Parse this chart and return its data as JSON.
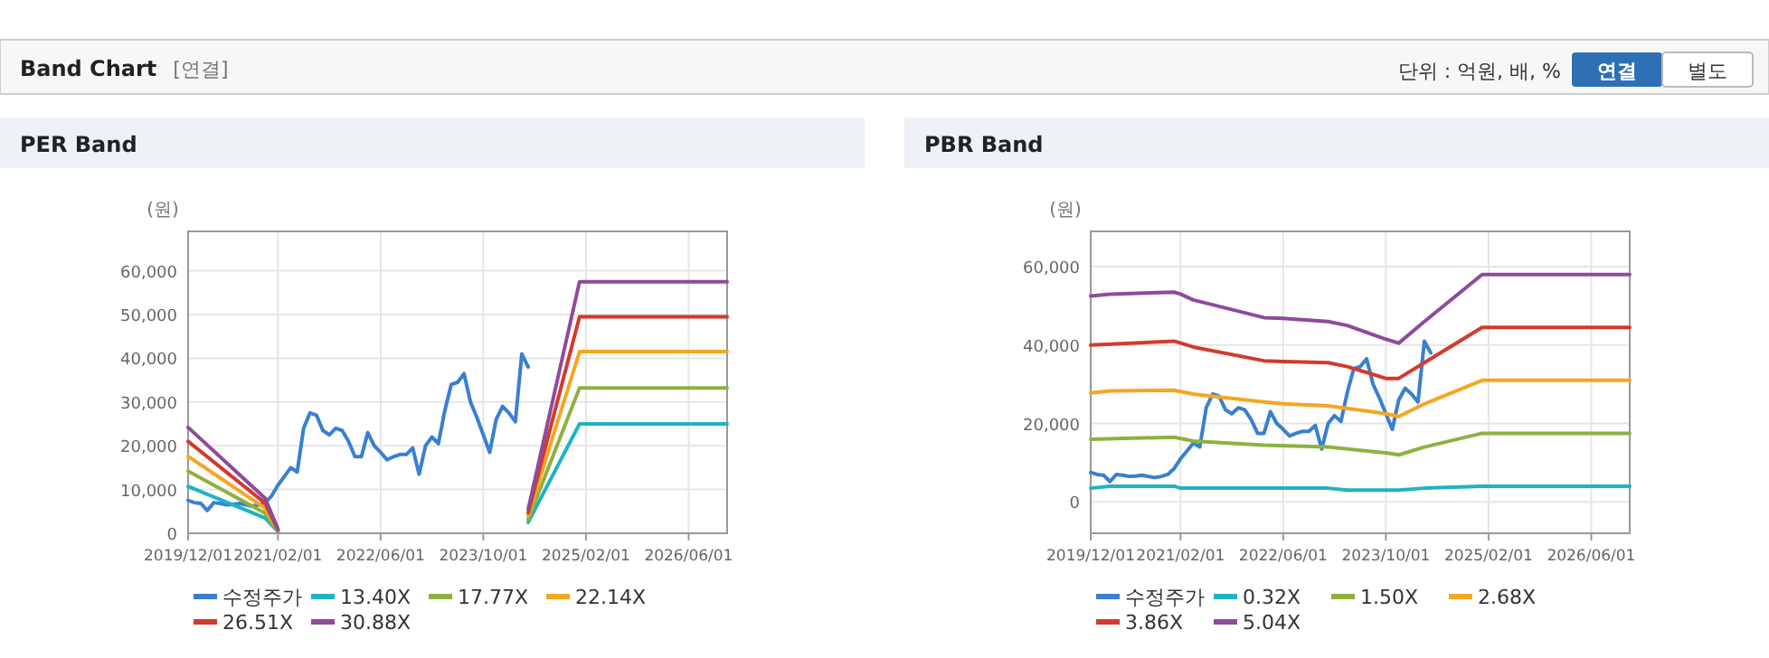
{
  "chart_data": [
    {
      "type": "other",
      "title": "Band Chart",
      "annotations": [
        "[연결]",
        "단위 : 억원, 배, %",
        "연결",
        "별도"
      ]
    },
    {
      "type": "line",
      "title": "PER Band",
      "ylabel": "(원)",
      "xlim": [
        "2019-12-01",
        "2026-12-01"
      ],
      "ylim": [
        0,
        69000
      ],
      "xticks": [
        {
          "value": "2019-12-01",
          "label": "2019/12/01"
        },
        {
          "value": "2021-02-01",
          "label": "2021/02/01"
        },
        {
          "value": "2022-06-01",
          "label": "2022/06/01"
        },
        {
          "value": "2023-10-01",
          "label": "2023/10/01"
        },
        {
          "value": "2025-02-01",
          "label": "2025/02/01"
        },
        {
          "value": "2026-06-01",
          "label": "2026/06/01"
        }
      ],
      "yticks": [
        {
          "value": 0,
          "label": "0"
        },
        {
          "value": 10000,
          "label": "10,000"
        },
        {
          "value": 20000,
          "label": "20,000"
        },
        {
          "value": 30000,
          "label": "30,000"
        },
        {
          "value": 40000,
          "label": "40,000"
        },
        {
          "value": 50000,
          "label": "50,000"
        },
        {
          "value": 60000,
          "label": "60,000"
        }
      ],
      "grid": true,
      "legend": "bottom",
      "marker": "none",
      "line_style": "solid",
      "series": [
        {
          "name": "수정주가",
          "color": "#3a7fd0",
          "x": [
            "2019-12",
            "2020-01",
            "2020-02",
            "2020-03",
            "2020-04",
            "2020-05",
            "2020-06",
            "2020-07",
            "2020-08",
            "2020-09",
            "2020-10",
            "2020-11",
            "2020-12",
            "2021-01",
            "2021-02",
            "2021-03",
            "2021-04",
            "2021-05",
            "2021-06",
            "2021-07",
            "2021-08",
            "2021-09",
            "2021-10",
            "2021-11",
            "2021-12",
            "2022-01",
            "2022-02",
            "2022-03",
            "2022-04",
            "2022-05",
            "2022-06",
            "2022-07",
            "2022-08",
            "2022-09",
            "2022-10",
            "2022-11",
            "2022-12",
            "2023-01",
            "2023-02",
            "2023-03",
            "2023-04",
            "2023-05",
            "2023-06",
            "2023-07",
            "2023-08",
            "2023-09",
            "2023-10",
            "2023-11",
            "2023-12",
            "2024-01",
            "2024-02",
            "2024-03",
            "2024-04",
            "2024-05"
          ],
          "values": [
            7500,
            7000,
            6800,
            5200,
            7000,
            6800,
            6500,
            6600,
            6800,
            6500,
            6200,
            6500,
            7000,
            8500,
            11000,
            13000,
            15000,
            14000,
            24000,
            27500,
            27000,
            23500,
            22500,
            24000,
            23500,
            21000,
            17500,
            17500,
            23000,
            20000,
            18500,
            16800,
            17500,
            18000,
            18000,
            19500,
            13500,
            20000,
            22000,
            20500,
            28000,
            34000,
            34500,
            36500,
            30000,
            26500,
            22500,
            18500,
            26000,
            29000,
            27500,
            25500,
            41000,
            38000
          ]
        },
        {
          "name": "13.40X",
          "color": "#1fb3c4",
          "x": [
            "2019-12",
            "2020-12",
            "2021-02",
            "2022-06",
            "2024-05",
            "2025-01",
            "2026-12"
          ],
          "values": [
            10700,
            3500,
            400,
            null,
            2500,
            25000,
            25000
          ]
        },
        {
          "name": "17.77X",
          "color": "#8cb23f",
          "x": [
            "2019-12",
            "2020-12",
            "2021-02",
            "2022-06",
            "2024-05",
            "2025-01",
            "2026-12"
          ],
          "values": [
            14200,
            4600,
            500,
            null,
            3200,
            33200,
            33200
          ]
        },
        {
          "name": "22.14X",
          "color": "#f5a623",
          "x": [
            "2019-12",
            "2020-12",
            "2021-02",
            "2022-06",
            "2024-05",
            "2025-01",
            "2026-12"
          ],
          "values": [
            17600,
            5700,
            700,
            null,
            4000,
            41500,
            41500
          ]
        },
        {
          "name": "26.51X",
          "color": "#d33a2c",
          "x": [
            "2019-12",
            "2020-12",
            "2021-02",
            "2022-06",
            "2024-05",
            "2025-01",
            "2026-12"
          ],
          "values": [
            21000,
            6900,
            800,
            null,
            4700,
            49500,
            49500
          ]
        },
        {
          "name": "30.88X",
          "color": "#8e4b9b",
          "x": [
            "2019-12",
            "2020-12",
            "2021-02",
            "2022-06",
            "2024-05",
            "2025-01",
            "2026-12"
          ],
          "values": [
            24200,
            8000,
            1000,
            null,
            5500,
            57500,
            57500
          ]
        }
      ]
    },
    {
      "type": "line",
      "title": "PBR Band",
      "ylabel": "(원)",
      "xlim": [
        "2019-12-01",
        "2026-12-01"
      ],
      "ylim": [
        -8000,
        69000
      ],
      "xticks": [
        {
          "value": "2019-12-01",
          "label": "2019/12/01"
        },
        {
          "value": "2021-02-01",
          "label": "2021/02/01"
        },
        {
          "value": "2022-06-01",
          "label": "2022/06/01"
        },
        {
          "value": "2023-10-01",
          "label": "2023/10/01"
        },
        {
          "value": "2025-02-01",
          "label": "2025/02/01"
        },
        {
          "value": "2026-06-01",
          "label": "2026/06/01"
        }
      ],
      "yticks": [
        {
          "value": 0,
          "label": "0"
        },
        {
          "value": 20000,
          "label": "20,000"
        },
        {
          "value": 40000,
          "label": "40,000"
        },
        {
          "value": 60000,
          "label": "60,000"
        }
      ],
      "grid": true,
      "legend": "bottom",
      "marker": "none",
      "line_style": "solid",
      "series": [
        {
          "name": "수정주가",
          "color": "#3a7fd0",
          "x": [
            "2019-12",
            "2020-01",
            "2020-02",
            "2020-03",
            "2020-04",
            "2020-05",
            "2020-06",
            "2020-07",
            "2020-08",
            "2020-09",
            "2020-10",
            "2020-11",
            "2020-12",
            "2021-01",
            "2021-02",
            "2021-03",
            "2021-04",
            "2021-05",
            "2021-06",
            "2021-07",
            "2021-08",
            "2021-09",
            "2021-10",
            "2021-11",
            "2021-12",
            "2022-01",
            "2022-02",
            "2022-03",
            "2022-04",
            "2022-05",
            "2022-06",
            "2022-07",
            "2022-08",
            "2022-09",
            "2022-10",
            "2022-11",
            "2022-12",
            "2023-01",
            "2023-02",
            "2023-03",
            "2023-04",
            "2023-05",
            "2023-06",
            "2023-07",
            "2023-08",
            "2023-09",
            "2023-10",
            "2023-11",
            "2023-12",
            "2024-01",
            "2024-02",
            "2024-03",
            "2024-04",
            "2024-05"
          ],
          "values": [
            7500,
            7000,
            6800,
            5200,
            7000,
            6800,
            6500,
            6600,
            6800,
            6500,
            6200,
            6500,
            7000,
            8500,
            11000,
            13000,
            15000,
            14000,
            24000,
            27500,
            27000,
            23500,
            22500,
            24000,
            23500,
            21000,
            17500,
            17500,
            23000,
            20000,
            18500,
            16800,
            17500,
            18000,
            18000,
            19500,
            13500,
            20000,
            22000,
            20500,
            28000,
            34000,
            34500,
            36500,
            30000,
            26500,
            22500,
            18500,
            26000,
            29000,
            27500,
            25500,
            41000,
            38000
          ]
        },
        {
          "name": "0.32X",
          "color": "#1fb3c4",
          "x": [
            "2019-12",
            "2020-03",
            "2021-01",
            "2021-02",
            "2023-01",
            "2023-04",
            "2023-12",
            "2024-04",
            "2025-01",
            "2026-12"
          ],
          "values": [
            3500,
            4000,
            4000,
            3500,
            3500,
            3000,
            3000,
            3500,
            4000,
            4000
          ]
        },
        {
          "name": "1.50X",
          "color": "#8cb23f",
          "x": [
            "2019-12",
            "2021-01",
            "2021-04",
            "2022-03",
            "2023-01",
            "2023-10",
            "2023-12",
            "2024-04",
            "2025-01",
            "2026-12"
          ],
          "values": [
            16000,
            16500,
            15500,
            14500,
            14000,
            12500,
            12000,
            14000,
            17500,
            17500
          ]
        },
        {
          "name": "2.68X",
          "color": "#f5a623",
          "x": [
            "2019-12",
            "2020-03",
            "2021-01",
            "2021-04",
            "2022-03",
            "2022-06",
            "2023-01",
            "2023-10",
            "2023-12",
            "2024-04",
            "2025-01",
            "2026-12"
          ],
          "values": [
            27800,
            28300,
            28500,
            27500,
            25500,
            25000,
            24500,
            22500,
            21800,
            25000,
            31000,
            31000
          ]
        },
        {
          "name": "3.86X",
          "color": "#d33a2c",
          "x": [
            "2019-12",
            "2021-01",
            "2021-04",
            "2022-03",
            "2022-06",
            "2023-01",
            "2023-04",
            "2023-10",
            "2023-12",
            "2024-04",
            "2025-01",
            "2026-12"
          ],
          "values": [
            40000,
            41000,
            39500,
            36000,
            35800,
            35500,
            34500,
            31500,
            31500,
            35500,
            44500,
            44500
          ]
        },
        {
          "name": "5.04X",
          "color": "#8e4b9b",
          "x": [
            "2019-12",
            "2020-03",
            "2021-01",
            "2021-02",
            "2021-04",
            "2022-03",
            "2022-06",
            "2023-01",
            "2023-04",
            "2023-10",
            "2023-12",
            "2024-04",
            "2025-01",
            "2026-12"
          ],
          "values": [
            52500,
            53000,
            53500,
            53000,
            51500,
            47000,
            46800,
            46000,
            45000,
            41500,
            40500,
            46000,
            58000,
            58000
          ]
        }
      ]
    }
  ]
}
